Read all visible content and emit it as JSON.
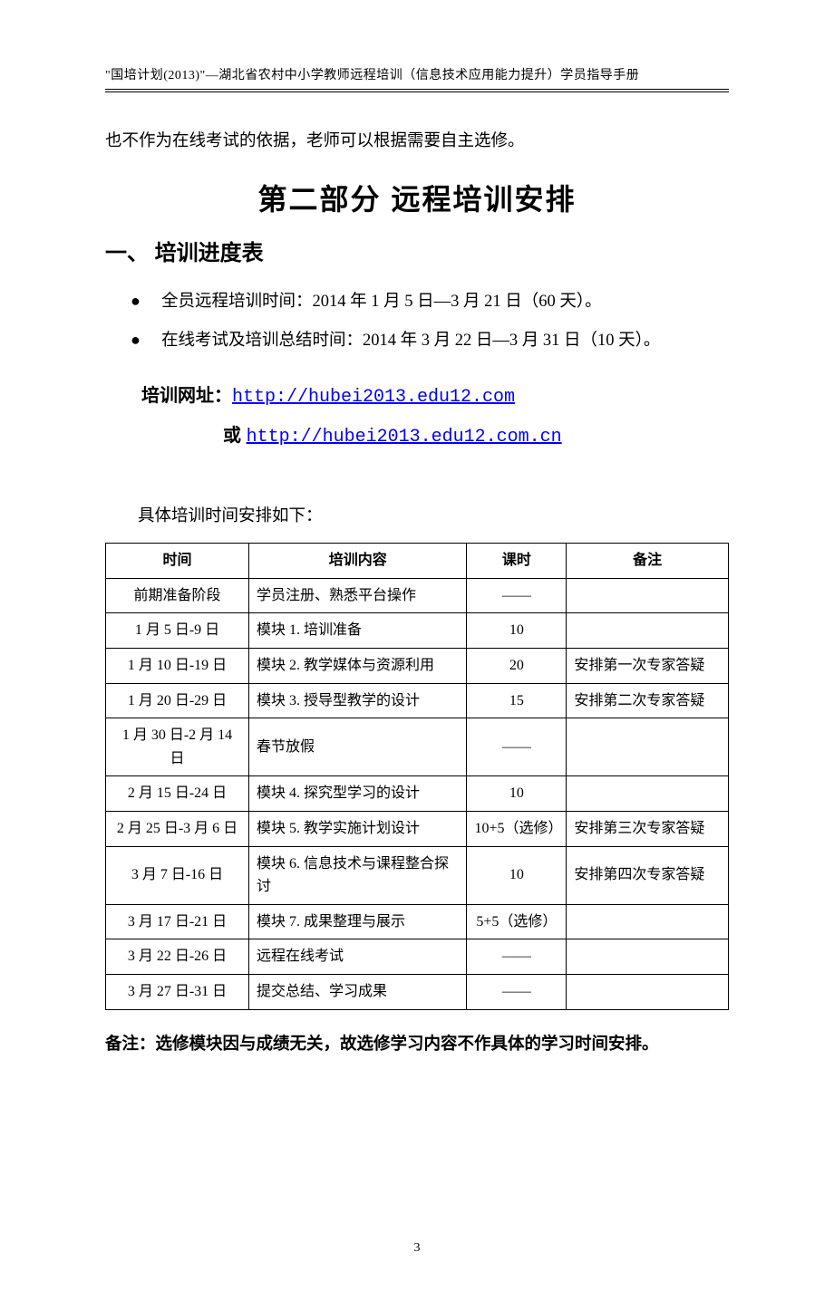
{
  "header": "\"国培计划(2013)\"—湖北省农村中小学教师远程培训（信息技术应用能力提升）学员指导手册",
  "lead_text": "也不作为在线考试的依据，老师可以根据需要自主选修。",
  "section_title": "第二部分  远程培训安排",
  "sub_title": "一、  培训进度表",
  "bullets": {
    "b1": "全员远程培训时间：2014 年 1 月 5 日—3 月 21 日（60 天）。",
    "b2": "在线考试及培训总结时间：2014 年 3 月 22 日—3 月 31 日（10 天）。"
  },
  "url_label": "培训网址：",
  "url1": "http://hubei2013.edu12.com",
  "url_or": "或 ",
  "url2": "http://hubei2013.edu12.com.cn",
  "sched_intro": "具体培训时间安排如下：",
  "table": {
    "headers": {
      "time": "时间",
      "content": "培训内容",
      "hours": "课时",
      "note": "备注"
    },
    "rows": [
      {
        "time": "前期准备阶段",
        "content": "学员注册、熟悉平台操作",
        "hours": "——",
        "note": ""
      },
      {
        "time": "1 月 5 日-9 日",
        "content": "模块 1. 培训准备",
        "hours": "10",
        "note": ""
      },
      {
        "time": "1 月 10 日-19 日",
        "content": "模块 2. 教学媒体与资源利用",
        "hours": "20",
        "note": "安排第一次专家答疑"
      },
      {
        "time": "1 月 20 日-29 日",
        "content": "模块 3. 授导型教学的设计",
        "hours": "15",
        "note": "安排第二次专家答疑"
      },
      {
        "time": "1 月 30 日-2 月 14 日",
        "content": "春节放假",
        "hours": "——",
        "note": ""
      },
      {
        "time": "2 月 15 日-24 日",
        "content": "模块 4. 探究型学习的设计",
        "hours": "10",
        "note": ""
      },
      {
        "time": "2 月 25 日-3 月 6 日",
        "content": "模块 5. 教学实施计划设计",
        "hours": "10+5（选修）",
        "note": "安排第三次专家答疑"
      },
      {
        "time": "3 月 7 日-16 日",
        "content": "模块 6. 信息技术与课程整合探讨",
        "hours": "10",
        "note": "安排第四次专家答疑"
      },
      {
        "time": "3 月 17 日-21 日",
        "content": "模块 7. 成果整理与展示",
        "hours": "5+5（选修）",
        "note": ""
      },
      {
        "time": "3 月 22 日-26 日",
        "content": "远程在线考试",
        "hours": "——",
        "note": ""
      },
      {
        "time": "3 月 27 日-31 日",
        "content": "提交总结、学习成果",
        "hours": "——",
        "note": ""
      }
    ]
  },
  "footnote": "备注：选修模块因与成绩无关，故选修学习内容不作具体的学习时间安排。",
  "pagenum": "3"
}
